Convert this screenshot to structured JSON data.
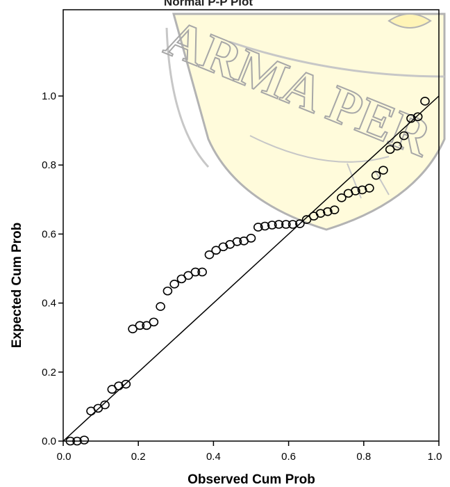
{
  "chart_data": {
    "type": "scatter",
    "title": "Normal P-P Plot",
    "xlabel": "Observed Cum Prob",
    "ylabel": "Expected Cum Prob",
    "xlim": [
      0,
      1
    ],
    "ylim": [
      0,
      1.25
    ],
    "xticks": [
      "0.0",
      "0.2",
      "0.4",
      "0.6",
      "0.8",
      "1.0"
    ],
    "yticks": [
      "0.0",
      "0.2",
      "0.4",
      "0.6",
      "0.8",
      "1.0"
    ],
    "grid": false,
    "legend": "none",
    "reference_line": [
      [
        0,
        0
      ],
      [
        1,
        1
      ]
    ],
    "points": [
      [
        0.019,
        0.0
      ],
      [
        0.037,
        0.0
      ],
      [
        0.056,
        0.003
      ],
      [
        0.074,
        0.087
      ],
      [
        0.093,
        0.095
      ],
      [
        0.111,
        0.105
      ],
      [
        0.13,
        0.15
      ],
      [
        0.148,
        0.16
      ],
      [
        0.167,
        0.165
      ],
      [
        0.185,
        0.325
      ],
      [
        0.204,
        0.335
      ],
      [
        0.222,
        0.335
      ],
      [
        0.241,
        0.345
      ],
      [
        0.259,
        0.39
      ],
      [
        0.278,
        0.435
      ],
      [
        0.296,
        0.455
      ],
      [
        0.315,
        0.47
      ],
      [
        0.333,
        0.48
      ],
      [
        0.352,
        0.49
      ],
      [
        0.37,
        0.49
      ],
      [
        0.389,
        0.54
      ],
      [
        0.407,
        0.553
      ],
      [
        0.426,
        0.563
      ],
      [
        0.444,
        0.57
      ],
      [
        0.463,
        0.578
      ],
      [
        0.481,
        0.58
      ],
      [
        0.5,
        0.588
      ],
      [
        0.519,
        0.62
      ],
      [
        0.537,
        0.623
      ],
      [
        0.556,
        0.626
      ],
      [
        0.574,
        0.628
      ],
      [
        0.593,
        0.628
      ],
      [
        0.611,
        0.628
      ],
      [
        0.63,
        0.63
      ],
      [
        0.648,
        0.642
      ],
      [
        0.667,
        0.652
      ],
      [
        0.685,
        0.66
      ],
      [
        0.704,
        0.665
      ],
      [
        0.722,
        0.67
      ],
      [
        0.741,
        0.705
      ],
      [
        0.759,
        0.718
      ],
      [
        0.778,
        0.725
      ],
      [
        0.796,
        0.728
      ],
      [
        0.815,
        0.733
      ],
      [
        0.833,
        0.77
      ],
      [
        0.852,
        0.785
      ],
      [
        0.87,
        0.845
      ],
      [
        0.889,
        0.855
      ],
      [
        0.907,
        0.885
      ],
      [
        0.926,
        0.935
      ],
      [
        0.944,
        0.94
      ],
      [
        0.963,
        0.985
      ]
    ]
  },
  "colors": {
    "axis": "#000000",
    "marker_stroke": "#000000",
    "watermark_outline": "#8a8a8a",
    "watermark_fill": "#fff6b8"
  }
}
